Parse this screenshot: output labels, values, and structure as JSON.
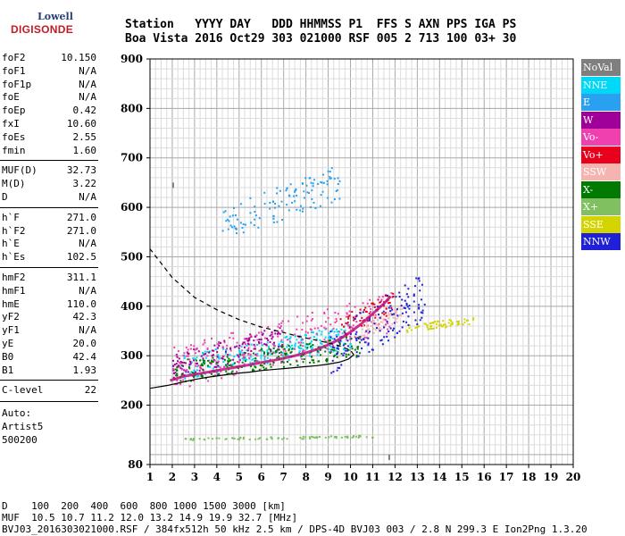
{
  "logo": {
    "top": "Lowell",
    "main": "DIGISONDE"
  },
  "header": {
    "line1": "Station   YYYY DAY   DDD HHMMSS P1  FFS S AXN PPS IGA PS",
    "line2": "Boa Vista 2016 Oct29 303 021000 RSF 005 2 713 100 03+ 30"
  },
  "params": {
    "group1": [
      [
        "foF2",
        "10.150"
      ],
      [
        "foF1",
        "N/A"
      ],
      [
        "foF1p",
        "N/A"
      ],
      [
        "foE",
        "N/A"
      ],
      [
        "foEp",
        "0.42"
      ],
      [
        "fxI",
        "10.60"
      ],
      [
        "foEs",
        "2.55"
      ],
      [
        "fmin",
        "1.60"
      ]
    ],
    "group2": [
      [
        "MUF(D)",
        "32.73"
      ],
      [
        "M(D)",
        "3.22"
      ],
      [
        "D",
        "N/A"
      ]
    ],
    "group3": [
      [
        "h`F",
        "271.0"
      ],
      [
        "h`F2",
        "271.0"
      ],
      [
        "h`E",
        "N/A"
      ],
      [
        "h`Es",
        "102.5"
      ]
    ],
    "group4": [
      [
        "hmF2",
        "311.1"
      ],
      [
        "hmF1",
        "N/A"
      ],
      [
        "hmE",
        "110.0"
      ],
      [
        "yF2",
        "42.3"
      ],
      [
        "yF1",
        "N/A"
      ],
      [
        "yE",
        "20.0"
      ],
      [
        "B0",
        "42.4"
      ],
      [
        "B1",
        "1.93"
      ]
    ],
    "group5": [
      [
        "C-level",
        "22"
      ]
    ],
    "auto": [
      "Auto:",
      "Artist5",
      "500200"
    ]
  },
  "legend": [
    {
      "label": "NoVal",
      "color": "#7f7f7f"
    },
    {
      "label": "NNE",
      "color": "#00d8f8"
    },
    {
      "label": "E",
      "color": "#2aa0f0"
    },
    {
      "label": "W",
      "color": "#a0009a"
    },
    {
      "label": "Vo-",
      "color": "#f040b0"
    },
    {
      "label": "Vo+",
      "color": "#e8001c"
    },
    {
      "label": "SSW",
      "color": "#f4b4b0"
    },
    {
      "label": "X-",
      "color": "#007a00"
    },
    {
      "label": "X+",
      "color": "#80c060"
    },
    {
      "label": "SSE",
      "color": "#d4d400"
    },
    {
      "label": "NNW",
      "color": "#2020d8"
    }
  ],
  "footer": {
    "line1": "D    100  200  400  600  800 1000 1500 3000 [km]",
    "line2": "MUF  10.5 10.7 11.2 12.0 13.2 14.9 19.9 32.7 [MHz]",
    "line3": "BVJ03_2016303021000.RSF / 384fx512h 50 kHz 2.5 km / DPS-4D BVJ03 003 / 2.8 N 299.3 E Ion2Png 1.3.20"
  },
  "chart_data": {
    "type": "scatter",
    "title": "",
    "xlabel": "",
    "ylabel": "",
    "xlim": [
      1,
      20
    ],
    "ylim": [
      80,
      900
    ],
    "xticks": [
      1,
      2,
      3,
      4,
      5,
      6,
      7,
      8,
      9,
      10,
      11,
      12,
      13,
      14,
      15,
      16,
      17,
      18,
      19,
      20
    ],
    "yticks": [
      80,
      200,
      300,
      400,
      500,
      600,
      700,
      800,
      900
    ],
    "grid": true,
    "legend_position": "right",
    "ordinary_trace": {
      "x": [
        1.9,
        2.5,
        3.0,
        3.5,
        4.0,
        4.5,
        5.0,
        5.5,
        6.0,
        6.5,
        7.0,
        7.5,
        8.0,
        8.5,
        9.0,
        9.5,
        10.0,
        10.5,
        11.0,
        11.5,
        11.8
      ],
      "y": [
        250,
        258,
        262,
        266,
        270,
        274,
        278,
        282,
        286,
        290,
        295,
        300,
        306,
        313,
        322,
        333,
        348,
        365,
        385,
        405,
        420
      ]
    },
    "profile_curve": {
      "x": [
        1.0,
        1.8,
        2.5,
        3.0,
        3.5,
        4.0,
        4.5,
        5.0,
        5.5,
        6.0,
        6.5,
        7.0,
        7.5,
        8.0,
        8.5,
        9.0,
        9.5,
        9.9,
        10.15,
        10.0,
        9.5,
        9.0,
        8.5,
        8.0,
        7.5,
        7.0,
        6.0,
        5.0,
        4.0,
        3.0,
        2.0,
        1.0
      ],
      "y": [
        234,
        240,
        247,
        252,
        256,
        259,
        262,
        265,
        267,
        270,
        272,
        274,
        276,
        278,
        280,
        283,
        287,
        293,
        302,
        311,
        320,
        326,
        331,
        336,
        341,
        347,
        358,
        373,
        393,
        418,
        458,
        516
      ]
    },
    "clusters": [
      {
        "legend": "NoVal",
        "x": [
          2.0,
          11.7
        ],
        "y": [
          650,
          100
        ]
      },
      {
        "legend": "NNE",
        "xrange": [
          2.5,
          10.0
        ],
        "yrange": [
          260,
          360
        ],
        "n": 260
      },
      {
        "legend": "E",
        "xrange": [
          4.2,
          9.5
        ],
        "yrange": [
          540,
          680
        ],
        "n": 120
      },
      {
        "legend": "W",
        "xrange": [
          2.0,
          7.0
        ],
        "yrange": [
          260,
          360
        ],
        "n": 160
      },
      {
        "legend": "Vo-",
        "xrange": [
          2.0,
          11.8
        ],
        "yrange": [
          240,
          420
        ],
        "n": 260
      },
      {
        "legend": "Vo+",
        "xrange": [
          9.5,
          11.9
        ],
        "yrange": [
          340,
          430
        ],
        "n": 60
      },
      {
        "legend": "SSW",
        "xrange": [
          10.5,
          12.3
        ],
        "yrange": [
          340,
          400
        ],
        "n": 60
      },
      {
        "legend": "X-",
        "xrange": [
          2.0,
          10.5
        ],
        "yrange": [
          250,
          340
        ],
        "n": 200
      },
      {
        "legend": "X+",
        "xrange": [
          2.5,
          11.0
        ],
        "yrange": [
          130,
          140
        ],
        "n": 80
      },
      {
        "legend": "SSE",
        "xrange": [
          12.5,
          15.5
        ],
        "yrange": [
          350,
          380
        ],
        "n": 60
      },
      {
        "legend": "NNW",
        "xrange": [
          9.0,
          13.3
        ],
        "yrange": [
          270,
          460
        ],
        "n": 140
      }
    ]
  }
}
